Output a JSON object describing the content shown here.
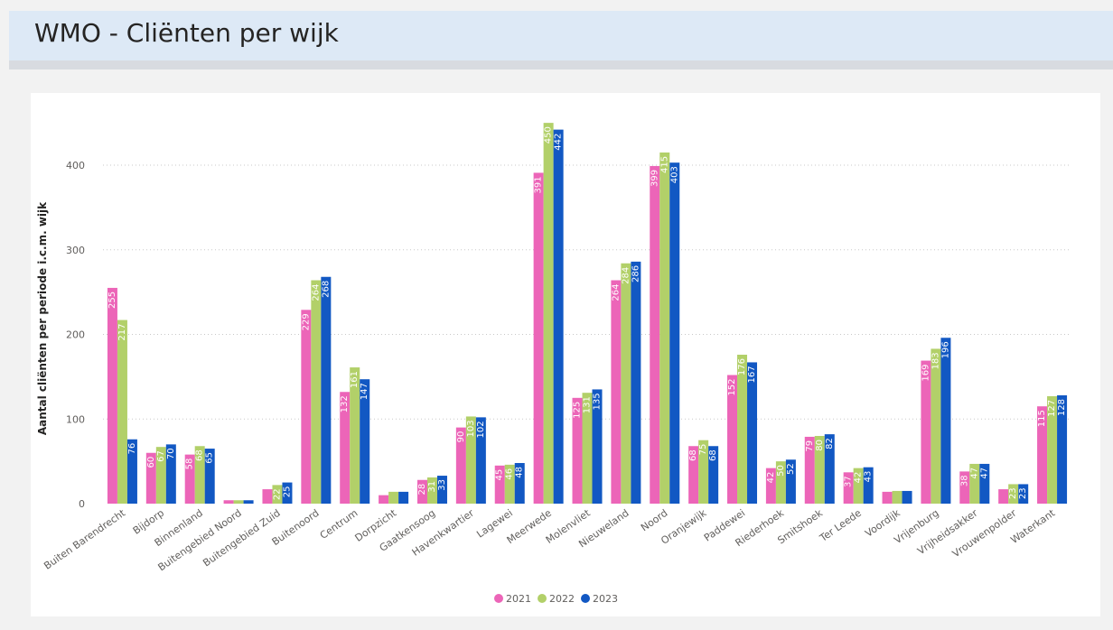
{
  "header": {
    "title": "WMO - Cliënten per wijk"
  },
  "colors": {
    "2021": "#ec65b8",
    "2022": "#b2d069",
    "2023": "#1258c3"
  },
  "chart_data": {
    "type": "bar",
    "ylabel": "Aantal cliënten per periode i.c.m. wijk",
    "xlabel": "",
    "ylim": [
      0,
      460
    ],
    "yticks": [
      0,
      100,
      200,
      300,
      400
    ],
    "grid": true,
    "legend_position": "bottom-center",
    "categories": [
      "Buiten Barendrecht",
      "Bijdorp",
      "Binnenland",
      "Buitengebied Noord",
      "Buitengebied Zuid",
      "Buitenoord",
      "Centrum",
      "Dorpzicht",
      "Gaatkensoog",
      "Havenkwartier",
      "Lagewei",
      "Meerwede",
      "Molenvliet",
      "Nieuweland",
      "Noord",
      "Oranjewijk",
      "Paddewei",
      "Riederhoek",
      "Smitshoek",
      "Ter Leede",
      "Voordijk",
      "Vrijenburg",
      "Vrijheidsakker",
      "Vrouwenpolder",
      "Waterkant"
    ],
    "series": [
      {
        "name": "2021",
        "values": [
          255,
          60,
          58,
          4,
          17,
          229,
          132,
          10,
          28,
          90,
          45,
          391,
          125,
          264,
          399,
          68,
          152,
          42,
          79,
          37,
          14,
          169,
          38,
          17,
          115
        ]
      },
      {
        "name": "2022",
        "values": [
          217,
          67,
          68,
          4,
          22,
          264,
          161,
          14,
          31,
          103,
          46,
          450,
          131,
          284,
          415,
          75,
          176,
          50,
          80,
          42,
          15,
          183,
          47,
          23,
          127
        ]
      },
      {
        "name": "2023",
        "values": [
          76,
          70,
          65,
          4,
          25,
          268,
          147,
          14,
          33,
          102,
          48,
          442,
          135,
          286,
          403,
          68,
          167,
          52,
          82,
          43,
          15,
          196,
          47,
          23,
          128
        ]
      }
    ]
  }
}
